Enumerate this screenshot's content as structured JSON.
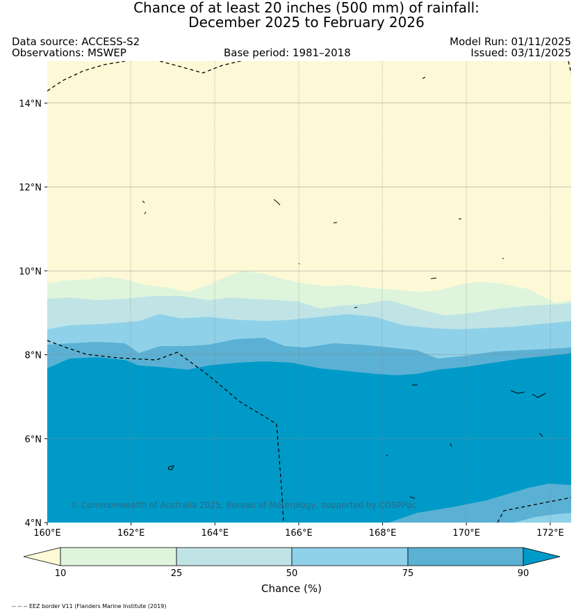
{
  "title": {
    "line1": "Chance of at least 20 inches (500  mm) of rainfall:",
    "line2": "December 2025 to February 2026"
  },
  "meta": {
    "data_source": "Data source: ACCESS-S2",
    "observations": "Observations: MSWEP",
    "base_period": "Base period: 1981–2018",
    "model_run": "Model Run: 01/11/2025",
    "issued": "Issued: 03/11/2025"
  },
  "map": {
    "copyright": "© Commonwealth of Australia 2025, Bureau of Meterology, supported by COSPPac",
    "lon_ticks": [
      "160°E",
      "162°E",
      "164°E",
      "166°E",
      "168°E",
      "170°E",
      "172°E"
    ],
    "lat_ticks": [
      "14°N",
      "12°N",
      "10°N",
      "8°N",
      "6°N",
      "4°N"
    ],
    "extent": {
      "lon_min": 160,
      "lon_max": 172.5,
      "lat_min": 4,
      "lat_max": 15
    }
  },
  "colorbar": {
    "title": "Chance (%)",
    "ticks": [
      "10",
      "25",
      "50",
      "75",
      "90"
    ],
    "colors": {
      "below_10": "#fdf9d6",
      "10_25": "#dff4dc",
      "25_50": "#c0e4e6",
      "50_75": "#8fd1e8",
      "75_90": "#5bb1d4",
      "above_90": "#009ac8"
    }
  },
  "footnote": "-- -- -- EEZ border V11 (Flanders Marine Institute (2019)"
}
